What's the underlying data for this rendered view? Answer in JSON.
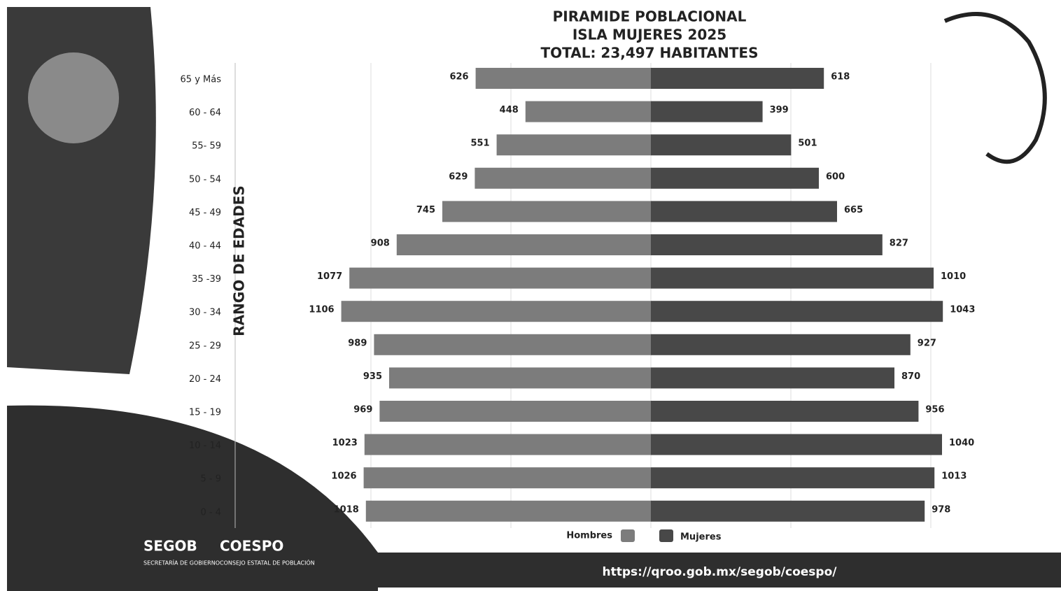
{
  "chart_data": {
    "type": "population_pyramid",
    "title": [
      "PIRAMIDE POBLACIONAL",
      "ISLA MUJERES 2025",
      "TOTAL: 23,497 HABITANTES"
    ],
    "y_axis_label": "RANGO DE EDADES",
    "categories": [
      "65 y Más",
      "60 - 64",
      "55- 59",
      "50 - 54",
      "45 - 49",
      "40 - 44",
      "35 -39",
      "30 - 34",
      "25 - 29",
      "20 - 24",
      "15 - 19",
      "10 - 14",
      "5 - 9",
      "0 - 4"
    ],
    "series": [
      {
        "name": "Hombres",
        "color": "#7c7c7c",
        "side": "left",
        "values": [
          626,
          448,
          551,
          629,
          745,
          908,
          1077,
          1106,
          989,
          935,
          969,
          1023,
          1026,
          1018
        ]
      },
      {
        "name": "Mujeres",
        "color": "#484848",
        "side": "right",
        "values": [
          618,
          399,
          501,
          600,
          665,
          827,
          1010,
          1043,
          927,
          870,
          956,
          1040,
          1013,
          978
        ]
      }
    ],
    "xlim": [
      -1400,
      1400
    ],
    "xticks": [
      -1000,
      -500,
      0,
      500,
      1000
    ],
    "grid": true,
    "legend": "bottom"
  },
  "footer": {
    "url": "https://qroo.gob.mx/segob/coespo/",
    "segob": "SEGOB",
    "segob_sub": "SECRETARÍA DE GOBIERNO",
    "coespo": "COESPO",
    "coespo_sub": "CONSEJO ESTATAL DE POBLACIÓN"
  }
}
